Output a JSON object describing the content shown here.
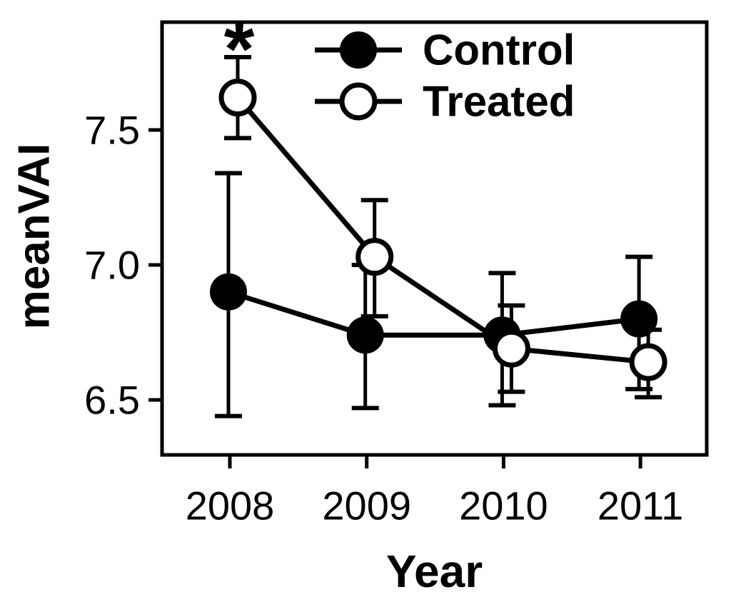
{
  "figure": {
    "background": "#ffffff",
    "foreground": "#000000"
  },
  "chart_data": {
    "type": "line",
    "title": "",
    "xlabel": "Year",
    "ylabel": "meanVAI",
    "categories": [
      "2008",
      "2009",
      "2010",
      "2011"
    ],
    "x_values": [
      2008,
      2009,
      2010,
      2011
    ],
    "ylim": [
      6.3,
      7.9
    ],
    "xlim": [
      2007.5,
      2011.5
    ],
    "yticks": [
      7.5,
      7.0,
      6.5
    ],
    "ytick_labels": [
      "7.5",
      "7.0",
      "6.5"
    ],
    "grid": false,
    "error_bars": true,
    "legend_position": "top-center-inside",
    "series": [
      {
        "name": "Control",
        "marker": "filled-circle",
        "color": "#000000",
        "fill": "#000000",
        "values": [
          6.9,
          6.74,
          6.74,
          6.8
        ],
        "upper": [
          7.34,
          7.0,
          6.97,
          7.03
        ],
        "lower": [
          6.44,
          6.47,
          6.48,
          6.54
        ]
      },
      {
        "name": "Treated",
        "marker": "open-circle",
        "color": "#000000",
        "fill": "#ffffff",
        "values": [
          7.62,
          7.03,
          6.69,
          6.64
        ],
        "upper": [
          7.77,
          7.24,
          6.85,
          6.76
        ],
        "lower": [
          7.47,
          6.81,
          6.53,
          6.51
        ]
      }
    ],
    "annotations": [
      {
        "text": "*",
        "series": "Treated",
        "category": "2008",
        "position": "above-upper-error-cap"
      }
    ]
  }
}
